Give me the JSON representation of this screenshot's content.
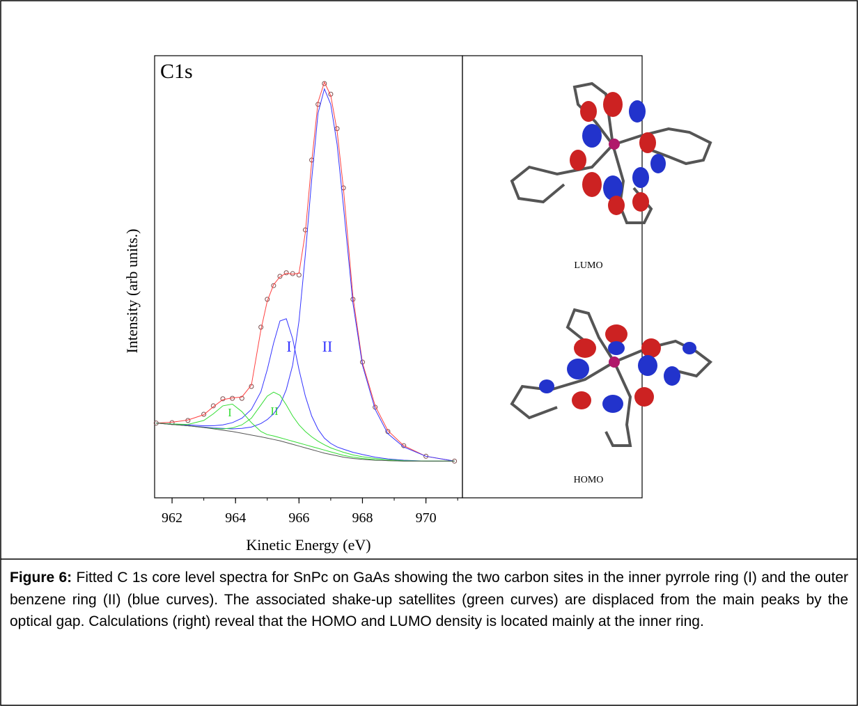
{
  "chart_data": {
    "type": "line",
    "title": "C1s",
    "x_label": "Kinetic Energy (eV)",
    "y_label": "Intensity (arb units.)",
    "xlim": [
      961.45,
      971.15
    ],
    "xticks": [
      962,
      964,
      966,
      968,
      970
    ],
    "ylim": [
      0,
      100
    ],
    "x": [
      961.5,
      962,
      962.5,
      963,
      963.3,
      963.6,
      963.9,
      964.2,
      964.5,
      964.8,
      965.0,
      965.2,
      965.4,
      965.6,
      965.8,
      966.0,
      966.2,
      966.4,
      966.6,
      966.8,
      967.0,
      967.2,
      967.4,
      967.7,
      968.0,
      968.4,
      968.8,
      969.3,
      970.0,
      970.9
    ],
    "series": [
      {
        "color": "#7a4a4a",
        "marker": "open-circle",
        "line": false,
        "values": [
          16.9,
          17.0,
          17.5,
          18.9,
          20.8,
          22.4,
          22.5,
          22.5,
          25.2,
          38.6,
          44.9,
          48.0,
          50.1,
          50.9,
          50.7,
          50.4,
          60.6,
          76.4,
          89.0,
          93.7,
          91.3,
          83.5,
          70.1,
          44.9,
          30.7,
          20.5,
          15.0,
          11.8,
          9.4,
          8.3
        ]
      },
      {
        "color": "#ff4040",
        "line": true,
        "values": [
          16.9,
          17.1,
          17.6,
          18.8,
          20.6,
          22.2,
          22.6,
          22.8,
          25.5,
          38.0,
          44.5,
          48.2,
          50.0,
          50.8,
          50.6,
          50.8,
          60.0,
          76.0,
          89.5,
          94.0,
          91.0,
          83.0,
          70.0,
          45.5,
          30.5,
          20.8,
          15.2,
          11.8,
          9.4,
          8.3
        ]
      },
      {
        "name": "I",
        "color": "#3333ff",
        "line": true,
        "values": [
          16.9,
          16.7,
          16.5,
          16.3,
          16.3,
          16.5,
          17.0,
          18.0,
          20.0,
          24.0,
          29.0,
          35.0,
          40.0,
          40.5,
          36.0,
          29.0,
          23.0,
          18.5,
          15.5,
          13.5,
          12.3,
          11.5,
          11.0,
          10.3,
          9.8,
          9.2,
          8.8,
          8.5,
          8.3,
          8.3
        ]
      },
      {
        "name": "II",
        "color": "#3333ff",
        "line": true,
        "values": [
          16.9,
          16.6,
          16.3,
          16.0,
          15.8,
          15.7,
          15.6,
          15.7,
          16.0,
          16.8,
          17.7,
          19.0,
          21.0,
          24.5,
          30.0,
          40.0,
          55.0,
          72.0,
          87.0,
          92.5,
          89.0,
          80.0,
          66.0,
          44.0,
          30.0,
          20.0,
          14.5,
          11.5,
          9.4,
          8.3
        ]
      },
      {
        "name": "I",
        "color": "#33dd33",
        "line": true,
        "values": [
          16.9,
          16.7,
          16.6,
          17.5,
          19.0,
          20.8,
          21.2,
          19.5,
          17.0,
          15.0,
          14.3,
          14.0,
          13.6,
          13.2,
          12.8,
          12.4,
          12.0,
          11.6,
          11.2,
          10.8,
          10.4,
          10.0,
          9.6,
          9.2,
          8.9,
          8.6,
          8.4,
          8.3,
          8.3,
          8.3
        ]
      },
      {
        "name": "II",
        "color": "#33dd33",
        "line": true,
        "values": [
          16.9,
          16.6,
          16.3,
          15.9,
          15.7,
          15.6,
          15.8,
          16.5,
          18.0,
          21.0,
          23.0,
          23.9,
          23.2,
          21.0,
          18.5,
          16.5,
          15.0,
          13.8,
          12.8,
          12.0,
          11.3,
          10.8,
          10.3,
          9.7,
          9.3,
          8.9,
          8.6,
          8.4,
          8.3,
          8.3
        ]
      },
      {
        "color": "#555555",
        "line": true,
        "values": [
          16.9,
          16.6,
          16.3,
          15.9,
          15.6,
          15.3,
          15.0,
          14.6,
          14.2,
          13.8,
          13.5,
          13.2,
          12.9,
          12.5,
          12.1,
          11.7,
          11.3,
          10.9,
          10.5,
          10.1,
          9.8,
          9.5,
          9.2,
          8.9,
          8.7,
          8.5,
          8.4,
          8.3,
          8.3,
          8.3
        ]
      }
    ]
  },
  "panel": {
    "top_label": "LUMO",
    "bottom_label": "HOMO"
  },
  "caption": {
    "label": "Figure 6:",
    "text": " Fitted C 1s core level spectra for SnPc on GaAs showing the two carbon sites in the inner pyrrole ring (I) and the outer benzene ring (II) (blue curves). The associated shake-up satellites (green curves) are displaced from the main peaks by the optical gap. Calculations (right) reveal that the HOMO and LUMO density is located mainly at the inner ring."
  }
}
